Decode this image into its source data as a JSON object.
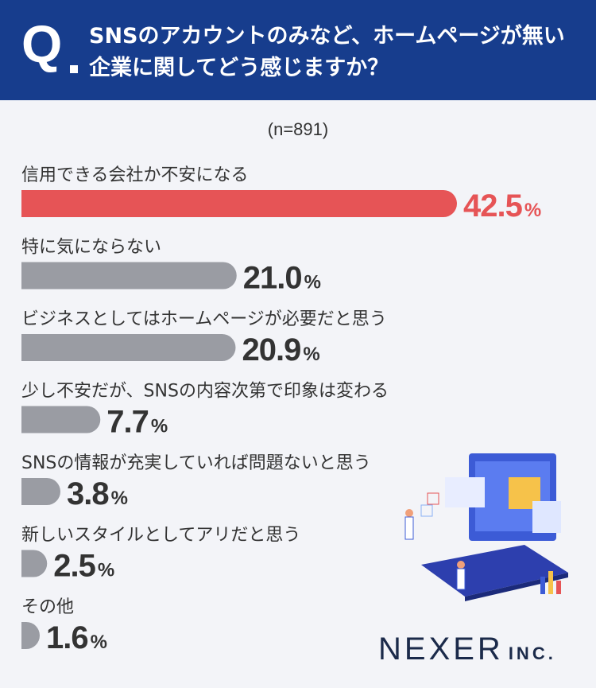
{
  "header": {
    "q_label": "Q",
    "question": "SNSのアカウントのみなど、ホームページが無い企業に関してどう感じますか？"
  },
  "sample_size": "(n=891)",
  "chart_data": {
    "type": "bar",
    "orientation": "horizontal",
    "unit": "%",
    "categories": [
      "信用できる会社か不安になる",
      "特に気にならない",
      "ビジネスとしてはホームページが必要だと思う",
      "少し不安だが、SNSの内容次第で印象は変わる",
      "SNSの情報が充実していれば問題ないと思う",
      "新しいスタイルとしてアリだと思う",
      "その他"
    ],
    "values": [
      42.5,
      21.0,
      20.9,
      7.7,
      3.8,
      2.5,
      1.6
    ],
    "labels": [
      "42.5",
      "21.0",
      "20.9",
      "7.7",
      "3.8",
      "2.5",
      "1.6"
    ],
    "highlight_index": 0,
    "colors": {
      "highlight": "#e65456",
      "default": "#9a9ca3",
      "text": "#333333"
    }
  },
  "logo": {
    "main": "NEXER",
    "sub": "INC."
  }
}
